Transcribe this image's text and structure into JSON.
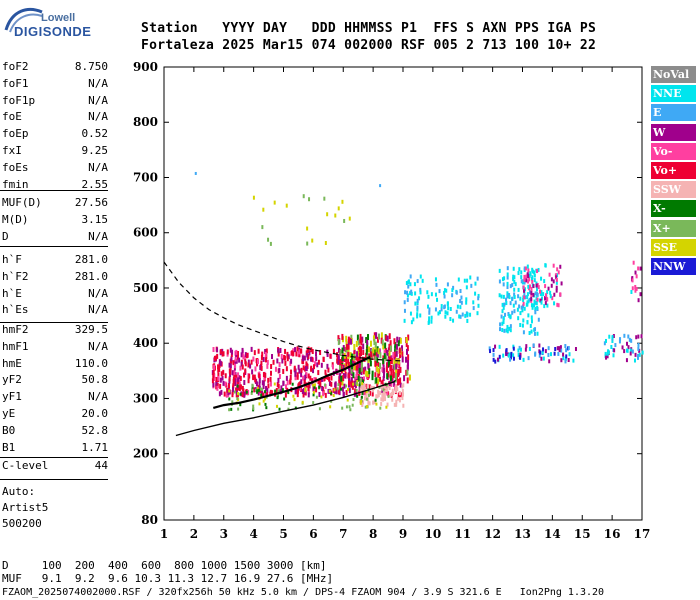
{
  "logo": {
    "top": "Lowell",
    "main": "DIGISONDE"
  },
  "header": {
    "row1": "Station   YYYY DAY   DDD HHMMSS P1  FFS S AXN PPS IGA PS",
    "row2": "Fortaleza 2025 Mar15 074 002000 RSF 005 2 713 100 10+ 22"
  },
  "params_group1": [
    {
      "label": "foF2",
      "value": "8.750"
    },
    {
      "label": "foF1",
      "value": "N/A"
    },
    {
      "label": "foF1p",
      "value": "N/A"
    },
    {
      "label": "foE",
      "value": "N/A"
    },
    {
      "label": "foEp",
      "value": "0.52"
    },
    {
      "label": "fxI",
      "value": "9.25"
    },
    {
      "label": "foEs",
      "value": "N/A"
    },
    {
      "label": "fmin",
      "value": "2.55"
    }
  ],
  "params_group2": [
    {
      "label": "MUF(D)",
      "value": "27.56"
    },
    {
      "label": "M(D)",
      "value": "3.15"
    },
    {
      "label": "D",
      "value": "N/A"
    }
  ],
  "params_group3": [
    {
      "label": "h`F",
      "value": "281.0"
    },
    {
      "label": "h`F2",
      "value": "281.0"
    },
    {
      "label": "h`E",
      "value": "N/A"
    },
    {
      "label": "h`Es",
      "value": "N/A"
    }
  ],
  "params_group4": [
    {
      "label": "hmF2",
      "value": "329.5"
    },
    {
      "label": "hmF1",
      "value": "N/A"
    },
    {
      "label": "hmE",
      "value": "110.0"
    },
    {
      "label": "yF2",
      "value": "50.8"
    },
    {
      "label": "yF1",
      "value": "N/A"
    },
    {
      "label": "yE",
      "value": "20.0"
    },
    {
      "label": "B0",
      "value": "52.8"
    },
    {
      "label": "B1",
      "value": "1.71"
    }
  ],
  "params_group5": [
    {
      "label": "C-level",
      "value": "44"
    }
  ],
  "autoscaling": {
    "line1": "Auto:",
    "line2": "Artist5",
    "line3": "500200"
  },
  "legend": [
    {
      "label": "NoVal",
      "color": "#8c8c8c"
    },
    {
      "label": "NNE",
      "color": "#00e5ee"
    },
    {
      "label": "E",
      "color": "#3fa9f5"
    },
    {
      "label": "W",
      "color": "#a0008c"
    },
    {
      "label": "Vo-",
      "color": "#ff3fa0"
    },
    {
      "label": "Vo+",
      "color": "#ee0033"
    },
    {
      "label": "SSW",
      "color": "#f5b3b3"
    },
    {
      "label": "X-",
      "color": "#007a00"
    },
    {
      "label": "X+",
      "color": "#7ab85a"
    },
    {
      "label": "SSE",
      "color": "#d4d400"
    },
    {
      "label": "NNW",
      "color": "#1a1ad6"
    }
  ],
  "footer": {
    "d_row": "D     100  200  400  600  800 1000 1500 3000 [km]",
    "muf_row": "MUF   9.1  9.2  9.6 10.3 11.3 12.7 16.9 27.6 [MHz]",
    "file_row": "FZAOM_2025074002000.RSF / 320fx256h 50 kHz 5.0 km / DPS-4 FZAOM 904 / 3.9 S 321.6 E   Ion2Png 1.3.20"
  },
  "chart_data": {
    "type": "scatter",
    "xlim": [
      1,
      17
    ],
    "ylim": [
      80,
      900
    ],
    "x_ticks": [
      1,
      2,
      3,
      4,
      5,
      6,
      7,
      8,
      9,
      10,
      11,
      12,
      13,
      14,
      15,
      16,
      17
    ],
    "y_ticks": [
      80,
      200,
      300,
      400,
      500,
      600,
      700,
      800,
      900
    ],
    "grid": false,
    "legend_position": "right",
    "o_trace": [
      [
        2.65,
        283
      ],
      [
        3,
        288
      ],
      [
        3.5,
        292
      ],
      [
        4,
        298
      ],
      [
        4.5,
        305
      ],
      [
        5,
        312
      ],
      [
        5.5,
        320
      ],
      [
        6,
        330
      ],
      [
        6.5,
        342
      ],
      [
        7,
        352
      ],
      [
        7.5,
        365
      ],
      [
        7.9,
        375
      ]
    ],
    "true_height_profile": [
      [
        1.4,
        233
      ],
      [
        2,
        242
      ],
      [
        3,
        255
      ],
      [
        4,
        265
      ],
      [
        5,
        277
      ],
      [
        6,
        288
      ],
      [
        7,
        302
      ],
      [
        8,
        318
      ],
      [
        8.7,
        330
      ],
      [
        8.75,
        333
      ]
    ],
    "topside_model": [
      [
        1,
        547
      ],
      [
        1.5,
        510
      ],
      [
        2,
        482
      ],
      [
        2.5,
        461
      ],
      [
        3,
        446
      ],
      [
        3.5,
        433
      ],
      [
        4,
        423
      ],
      [
        4.5,
        413
      ],
      [
        5,
        403
      ],
      [
        5.5,
        395
      ],
      [
        6,
        388
      ],
      [
        6.5,
        383
      ],
      [
        7,
        378
      ],
      [
        7.5,
        374
      ],
      [
        8,
        371
      ],
      [
        8.5,
        369
      ],
      [
        9,
        368
      ]
    ]
  }
}
